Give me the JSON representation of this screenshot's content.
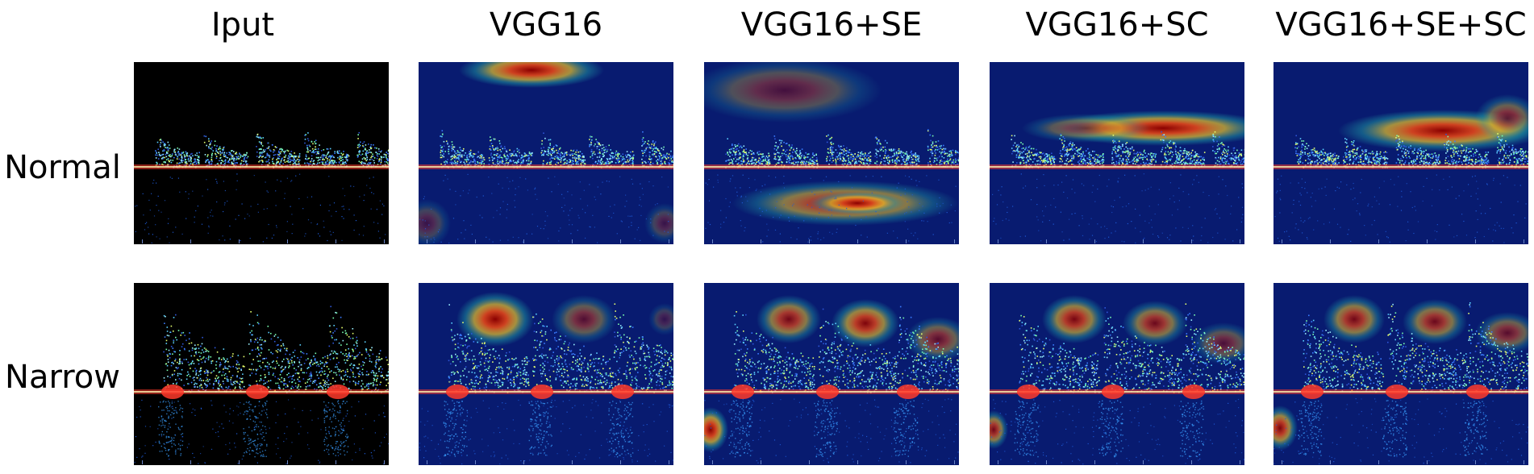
{
  "columns": [
    "Iput",
    "VGG16",
    "VGG16+SE",
    "VGG16+SC",
    "VGG16+SE+SC"
  ],
  "rows": [
    "Normal",
    "Narrow"
  ],
  "colors": {
    "background_input": "#000000",
    "background_heat": "#071363",
    "heat_hot": "#8a0000",
    "heat_warm": "#e8c22a",
    "baseline": "#ff3a2a",
    "signal": "#5ad0ff"
  }
}
